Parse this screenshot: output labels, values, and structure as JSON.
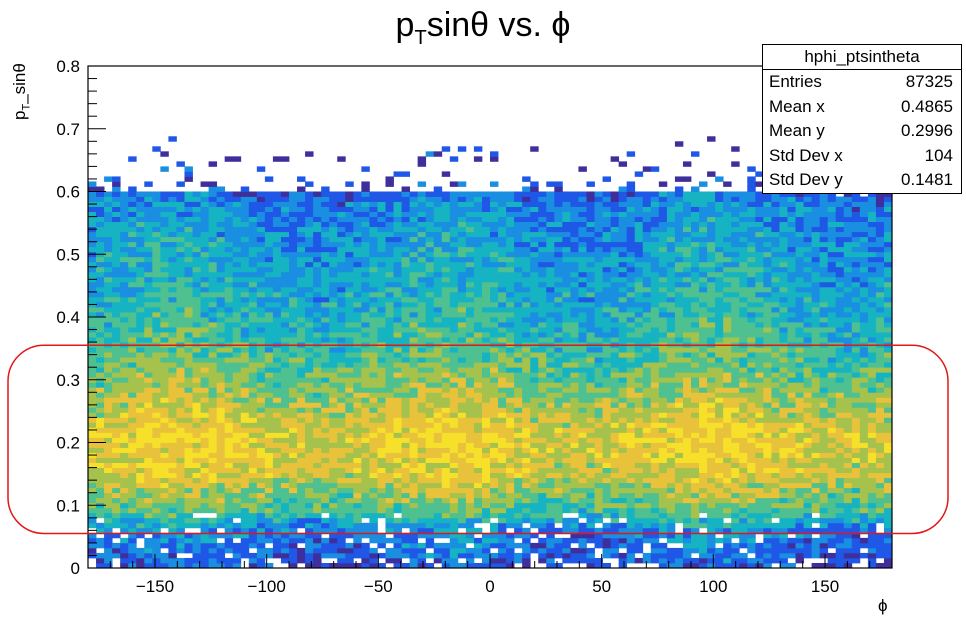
{
  "chart_data": {
    "type": "heatmap",
    "title_main": "p",
    "title_sub": "T",
    "title_rest": "sinθ vs. ϕ",
    "ylabel_main": "p",
    "ylabel_sub": "T",
    "ylabel_rest": "_sinθ",
    "xlabel": "ϕ",
    "xlim": [
      -180,
      180
    ],
    "ylim": [
      0,
      0.8
    ],
    "x_ticks": [
      -150,
      -100,
      -50,
      0,
      50,
      100,
      150
    ],
    "x_tick_labels": [
      "−150",
      "−100",
      "−50",
      "0",
      "50",
      "100",
      "150"
    ],
    "y_ticks": [
      0,
      0.1,
      0.2,
      0.3,
      0.4,
      0.5,
      0.6,
      0.7,
      0.8
    ],
    "y_tick_labels": [
      "0",
      "0.1",
      "0.2",
      "0.3",
      "0.4",
      "0.5",
      "0.6",
      "0.7",
      "0.8"
    ],
    "bins_x": 100,
    "bins_y": 100,
    "colormap": [
      "#3e2f9c",
      "#1f57e6",
      "#1a8ee0",
      "#16b3c2",
      "#4fc08f",
      "#a5c24d",
      "#e8c23b",
      "#f7e02a"
    ],
    "density_profile": [
      {
        "y": 0.0,
        "level": 0.15
      },
      {
        "y": 0.04,
        "level": 0.25
      },
      {
        "y": 0.06,
        "level": 0.3
      },
      {
        "y": 0.09,
        "level": 0.55
      },
      {
        "y": 0.15,
        "level": 0.78
      },
      {
        "y": 0.21,
        "level": 0.85
      },
      {
        "y": 0.3,
        "level": 0.62
      },
      {
        "y": 0.4,
        "level": 0.45
      },
      {
        "y": 0.5,
        "level": 0.38
      },
      {
        "y": 0.58,
        "level": 0.3
      },
      {
        "y": 0.62,
        "level": 0.12
      },
      {
        "y": 0.7,
        "level": 0.02
      }
    ],
    "stats": {
      "name": "hphi_ptsintheta",
      "rows": [
        {
          "label": "Entries",
          "value": "87325"
        },
        {
          "label": "Mean x",
          "value": "0.4865"
        },
        {
          "label": "Mean y",
          "value": "0.2996"
        },
        {
          "label": "Std Dev x",
          "value": "104"
        },
        {
          "label": "Std Dev y",
          "value": "0.1481"
        }
      ]
    },
    "highlight_box": {
      "y_range": [
        0.055,
        0.355
      ],
      "color": "#e01818"
    }
  }
}
